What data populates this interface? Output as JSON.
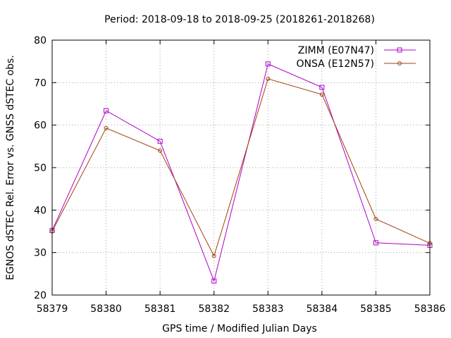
{
  "chart_data": {
    "type": "line",
    "title": "Period: 2018-09-18 to 2018-09-25 (2018261-2018268)",
    "xlabel": "GPS time / Modified Julian Days",
    "ylabel": "EGNOS dSTEC Rel. Error vs. GNSS dSTEC obs.",
    "xlim": [
      58379,
      58386
    ],
    "ylim": [
      20,
      80
    ],
    "xticks": [
      58379,
      58380,
      58381,
      58382,
      58383,
      58384,
      58385,
      58386
    ],
    "yticks": [
      20,
      30,
      40,
      50,
      60,
      70,
      80
    ],
    "grid": true,
    "legend_position": "top-right",
    "series": [
      {
        "name": "ZIMM (E07N47)",
        "color": "#b000c8",
        "marker": "square",
        "x": [
          58379,
          58380,
          58381,
          58382,
          58383,
          58384,
          58385,
          58386
        ],
        "y": [
          35.2,
          63.4,
          56.2,
          23.3,
          74.4,
          68.9,
          32.3,
          31.7
        ]
      },
      {
        "name": "ONSA (E12N57)",
        "color": "#a0410d",
        "marker": "circle",
        "x": [
          58379,
          58380,
          58381,
          58382,
          58383,
          58384,
          58385,
          58386
        ],
        "y": [
          35.0,
          59.3,
          54.0,
          29.2,
          70.9,
          67.2,
          37.9,
          32.2
        ]
      }
    ]
  }
}
